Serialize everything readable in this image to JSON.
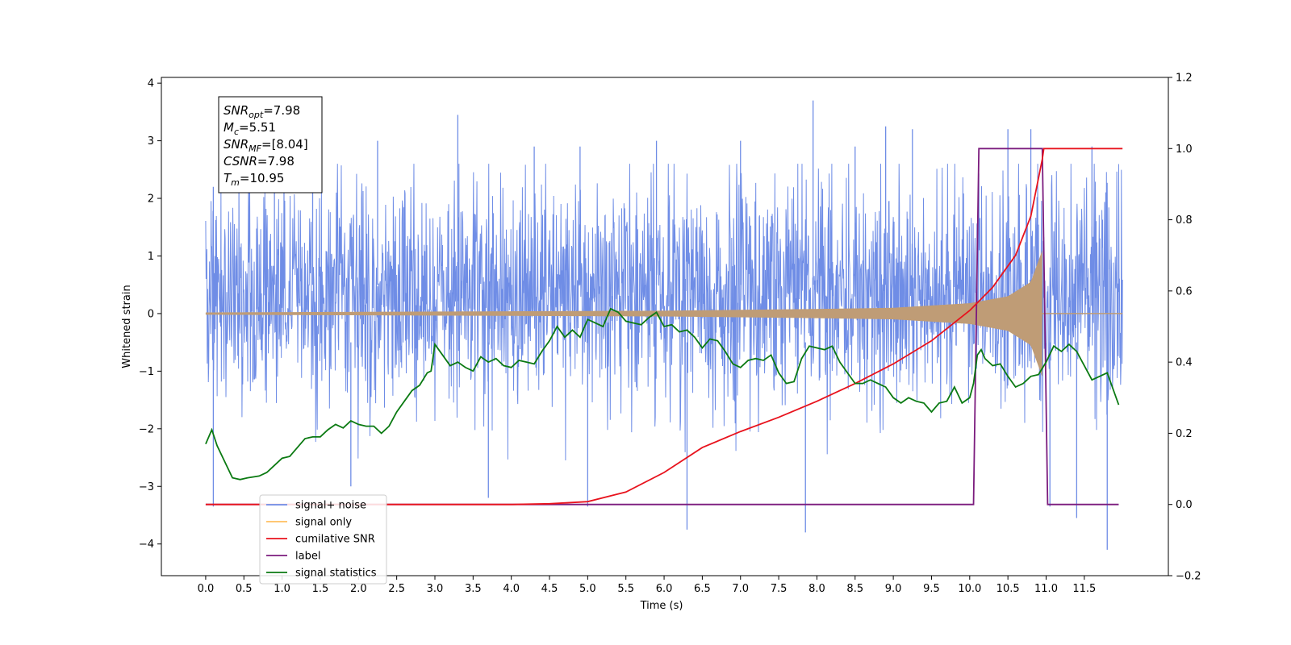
{
  "chart_data": {
    "type": "line",
    "xlabel": "Time (s)",
    "ylabel": "Whitened strain",
    "xlim": [
      -0.58,
      12.6
    ],
    "ylim_left": [
      -4.55,
      4.1
    ],
    "ylim_right": [
      -0.2,
      1.2
    ],
    "x_ticks": [
      "0.0",
      "0.5",
      "1.0",
      "1.5",
      "2.0",
      "2.5",
      "3.0",
      "3.5",
      "4.0",
      "4.5",
      "5.0",
      "5.5",
      "6.0",
      "6.5",
      "7.0",
      "7.5",
      "8.0",
      "8.5",
      "9.0",
      "9.5",
      "10.0",
      "10.5",
      "11.0",
      "11.5"
    ],
    "x_tick_values": [
      0.0,
      0.5,
      1.0,
      1.5,
      2.0,
      2.5,
      3.0,
      3.5,
      4.0,
      4.5,
      5.0,
      5.5,
      6.0,
      6.5,
      7.0,
      7.5,
      8.0,
      8.5,
      9.0,
      9.5,
      10.0,
      10.5,
      11.0,
      11.5
    ],
    "y_ticks_left": [
      "4",
      "3",
      "2",
      "1",
      "0",
      "−1",
      "−2",
      "−3",
      "−4"
    ],
    "y_tick_values_left": [
      4,
      3,
      2,
      1,
      0,
      -1,
      -2,
      -3,
      -4
    ],
    "y_ticks_right": [
      "1.2",
      "1.0",
      "0.8",
      "0.6",
      "0.4",
      "0.2",
      "0.0",
      "−0.2"
    ],
    "y_tick_values_right": [
      1.2,
      1.0,
      0.8,
      0.6,
      0.4,
      0.2,
      0.0,
      -0.2
    ],
    "annotation": {
      "lines": [
        {
          "base": "SNR",
          "sub": "opt",
          "value": "=7.98"
        },
        {
          "base": "M",
          "sub": "c",
          "value": "=5.51"
        },
        {
          "base": "SNR",
          "sub": "MF",
          "value": "=[8.04]"
        },
        {
          "base": "CSNR",
          "sub": "",
          "value": "=7.98"
        },
        {
          "base": "T",
          "sub": "m",
          "value": "=10.95"
        }
      ]
    },
    "legend": {
      "placement": "lower-left",
      "entries": [
        {
          "label": "signal+ noise",
          "color": "#6f8de6"
        },
        {
          "label": "signal only",
          "color": "#ffbf5f"
        },
        {
          "label": "cumilative SNR",
          "color": "#e8131d"
        },
        {
          "label": "label",
          "color": "#7b1b7d"
        },
        {
          "label": "signal statistics",
          "color": "#0b7a12"
        }
      ]
    },
    "series": [
      {
        "name": "signal+ noise",
        "axis": "left",
        "color": "#6f8de6",
        "x_range": [
          0.0,
          12.0
        ],
        "peaks_high": [
          [
            0.1,
            2.2
          ],
          [
            0.9,
            2.8
          ],
          [
            1.4,
            3.1
          ],
          [
            2.25,
            3.0
          ],
          [
            3.3,
            3.45
          ],
          [
            4.3,
            2.9
          ],
          [
            4.9,
            2.9
          ],
          [
            5.9,
            3.0
          ],
          [
            7.0,
            3.0
          ],
          [
            7.95,
            3.7
          ],
          [
            8.5,
            2.9
          ],
          [
            8.9,
            3.25
          ],
          [
            9.25,
            3.2
          ],
          [
            10.5,
            3.2
          ],
          [
            10.8,
            3.2
          ],
          [
            11.6,
            2.9
          ]
        ],
        "peaks_low": [
          [
            0.1,
            -3.35
          ],
          [
            1.9,
            -3.0
          ],
          [
            3.7,
            -3.2
          ],
          [
            5.0,
            -3.35
          ],
          [
            6.3,
            -3.75
          ],
          [
            7.85,
            -3.8
          ],
          [
            11.05,
            -3.35
          ],
          [
            11.4,
            -3.55
          ],
          [
            11.8,
            -4.1
          ]
        ]
      },
      {
        "name": "signal only",
        "axis": "left",
        "color": "#ffbf5f",
        "fill": "#bf9c76",
        "chirp_end": 10.95,
        "envelope": [
          [
            0.0,
            0.02
          ],
          [
            6.0,
            0.05
          ],
          [
            8.0,
            0.08
          ],
          [
            9.0,
            0.1
          ],
          [
            10.0,
            0.18
          ],
          [
            10.5,
            0.3
          ],
          [
            10.8,
            0.55
          ],
          [
            10.95,
            1.1
          ],
          [
            11.0,
            0.0
          ],
          [
            12.0,
            0.0
          ]
        ]
      },
      {
        "name": "cumilative SNR",
        "axis": "right",
        "color": "#e8131d",
        "points": [
          [
            0.0,
            0.0
          ],
          [
            4.0,
            0.0
          ],
          [
            4.5,
            0.002
          ],
          [
            5.0,
            0.008
          ],
          [
            5.5,
            0.035
          ],
          [
            6.0,
            0.09
          ],
          [
            6.5,
            0.16
          ],
          [
            7.0,
            0.205
          ],
          [
            7.5,
            0.245
          ],
          [
            8.0,
            0.29
          ],
          [
            8.5,
            0.34
          ],
          [
            9.0,
            0.395
          ],
          [
            9.5,
            0.46
          ],
          [
            10.0,
            0.545
          ],
          [
            10.3,
            0.61
          ],
          [
            10.6,
            0.7
          ],
          [
            10.8,
            0.81
          ],
          [
            10.95,
            0.97
          ],
          [
            10.97,
            1.0
          ],
          [
            12.0,
            1.0
          ]
        ]
      },
      {
        "name": "label",
        "axis": "right",
        "color": "#7b1b7d",
        "points": [
          [
            0.0,
            0.0
          ],
          [
            10.05,
            0.0
          ],
          [
            10.12,
            1.0
          ],
          [
            10.95,
            1.0
          ],
          [
            11.02,
            0.0
          ],
          [
            11.95,
            0.0
          ]
        ]
      },
      {
        "name": "signal statistics",
        "axis": "right",
        "color": "#0b7a12",
        "points": [
          [
            0.0,
            0.17
          ],
          [
            0.08,
            0.21
          ],
          [
            0.15,
            0.165
          ],
          [
            0.25,
            0.12
          ],
          [
            0.35,
            0.075
          ],
          [
            0.45,
            0.07
          ],
          [
            0.55,
            0.075
          ],
          [
            0.7,
            0.08
          ],
          [
            0.8,
            0.09
          ],
          [
            0.9,
            0.11
          ],
          [
            1.0,
            0.13
          ],
          [
            1.1,
            0.135
          ],
          [
            1.2,
            0.16
          ],
          [
            1.3,
            0.185
          ],
          [
            1.4,
            0.19
          ],
          [
            1.5,
            0.19
          ],
          [
            1.6,
            0.21
          ],
          [
            1.7,
            0.225
          ],
          [
            1.8,
            0.215
          ],
          [
            1.9,
            0.235
          ],
          [
            2.0,
            0.225
          ],
          [
            2.1,
            0.22
          ],
          [
            2.2,
            0.22
          ],
          [
            2.3,
            0.2
          ],
          [
            2.4,
            0.22
          ],
          [
            2.5,
            0.26
          ],
          [
            2.6,
            0.29
          ],
          [
            2.7,
            0.32
          ],
          [
            2.8,
            0.335
          ],
          [
            2.9,
            0.37
          ],
          [
            2.95,
            0.375
          ],
          [
            3.0,
            0.45
          ],
          [
            3.1,
            0.42
          ],
          [
            3.2,
            0.39
          ],
          [
            3.3,
            0.4
          ],
          [
            3.4,
            0.385
          ],
          [
            3.5,
            0.375
          ],
          [
            3.6,
            0.415
          ],
          [
            3.7,
            0.4
          ],
          [
            3.8,
            0.41
          ],
          [
            3.9,
            0.39
          ],
          [
            4.0,
            0.385
          ],
          [
            4.1,
            0.405
          ],
          [
            4.2,
            0.4
          ],
          [
            4.3,
            0.395
          ],
          [
            4.4,
            0.43
          ],
          [
            4.5,
            0.46
          ],
          [
            4.6,
            0.5
          ],
          [
            4.7,
            0.47
          ],
          [
            4.8,
            0.49
          ],
          [
            4.9,
            0.47
          ],
          [
            5.0,
            0.52
          ],
          [
            5.1,
            0.51
          ],
          [
            5.2,
            0.5
          ],
          [
            5.3,
            0.55
          ],
          [
            5.4,
            0.54
          ],
          [
            5.5,
            0.515
          ],
          [
            5.6,
            0.51
          ],
          [
            5.7,
            0.505
          ],
          [
            5.8,
            0.525
          ],
          [
            5.9,
            0.54
          ],
          [
            6.0,
            0.5
          ],
          [
            6.1,
            0.505
          ],
          [
            6.2,
            0.485
          ],
          [
            6.3,
            0.49
          ],
          [
            6.4,
            0.47
          ],
          [
            6.5,
            0.44
          ],
          [
            6.6,
            0.465
          ],
          [
            6.7,
            0.46
          ],
          [
            6.8,
            0.43
          ],
          [
            6.9,
            0.395
          ],
          [
            7.0,
            0.385
          ],
          [
            7.1,
            0.405
          ],
          [
            7.2,
            0.41
          ],
          [
            7.3,
            0.405
          ],
          [
            7.4,
            0.42
          ],
          [
            7.5,
            0.37
          ],
          [
            7.6,
            0.34
          ],
          [
            7.7,
            0.345
          ],
          [
            7.8,
            0.41
          ],
          [
            7.9,
            0.445
          ],
          [
            8.0,
            0.44
          ],
          [
            8.1,
            0.435
          ],
          [
            8.2,
            0.445
          ],
          [
            8.3,
            0.4
          ],
          [
            8.4,
            0.37
          ],
          [
            8.5,
            0.34
          ],
          [
            8.6,
            0.34
          ],
          [
            8.7,
            0.35
          ],
          [
            8.8,
            0.34
          ],
          [
            8.9,
            0.33
          ],
          [
            9.0,
            0.3
          ],
          [
            9.1,
            0.285
          ],
          [
            9.2,
            0.3
          ],
          [
            9.3,
            0.29
          ],
          [
            9.4,
            0.285
          ],
          [
            9.5,
            0.26
          ],
          [
            9.6,
            0.285
          ],
          [
            9.7,
            0.29
          ],
          [
            9.8,
            0.33
          ],
          [
            9.9,
            0.285
          ],
          [
            10.0,
            0.3
          ],
          [
            10.05,
            0.34
          ],
          [
            10.1,
            0.42
          ],
          [
            10.15,
            0.435
          ],
          [
            10.2,
            0.41
          ],
          [
            10.3,
            0.39
          ],
          [
            10.4,
            0.395
          ],
          [
            10.5,
            0.36
          ],
          [
            10.6,
            0.33
          ],
          [
            10.7,
            0.34
          ],
          [
            10.8,
            0.36
          ],
          [
            10.9,
            0.365
          ],
          [
            11.0,
            0.4
          ],
          [
            11.1,
            0.445
          ],
          [
            11.2,
            0.43
          ],
          [
            11.3,
            0.45
          ],
          [
            11.4,
            0.43
          ],
          [
            11.5,
            0.39
          ],
          [
            11.6,
            0.35
          ],
          [
            11.7,
            0.36
          ],
          [
            11.8,
            0.37
          ],
          [
            11.9,
            0.31
          ],
          [
            11.95,
            0.28
          ]
        ]
      }
    ]
  }
}
